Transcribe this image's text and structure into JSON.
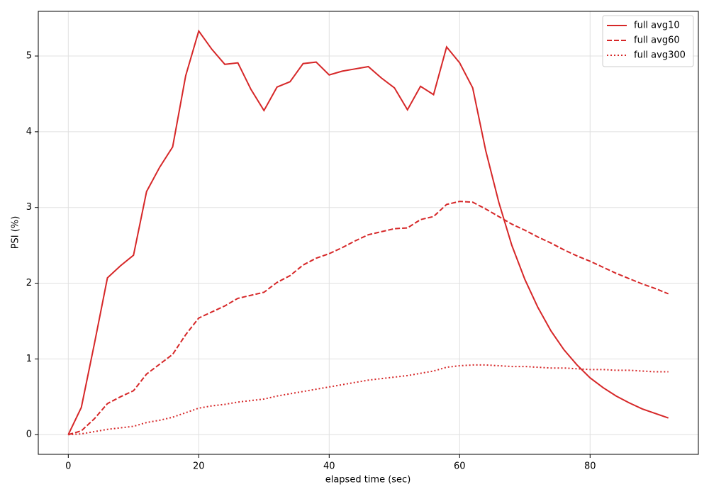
{
  "chart_data": {
    "type": "line",
    "xlabel": "elapsed time (sec)",
    "ylabel": "PSI (%)",
    "x": [
      0,
      2,
      4,
      6,
      8,
      10,
      12,
      14,
      16,
      18,
      20,
      22,
      24,
      26,
      28,
      30,
      32,
      34,
      36,
      38,
      40,
      42,
      44,
      46,
      48,
      50,
      52,
      54,
      56,
      58,
      60,
      62,
      64,
      66,
      68,
      70,
      72,
      74,
      76,
      78,
      80,
      82,
      84,
      86,
      88,
      90,
      92
    ],
    "series": [
      {
        "name": "full avg10",
        "color": "#d62728",
        "dash": "solid",
        "values": [
          0,
          0.36,
          1.2,
          2.07,
          2.23,
          2.37,
          3.21,
          3.53,
          3.8,
          4.74,
          5.33,
          5.09,
          4.89,
          4.91,
          4.56,
          4.28,
          4.59,
          4.66,
          4.9,
          4.92,
          4.75,
          4.8,
          4.83,
          4.86,
          4.71,
          4.58,
          4.29,
          4.6,
          4.49,
          5.12,
          4.91,
          4.58,
          3.75,
          3.07,
          2.5,
          2.05,
          1.68,
          1.37,
          1.12,
          0.92,
          0.75,
          0.62,
          0.51,
          0.42,
          0.34,
          0.28,
          0.22
        ]
      },
      {
        "name": "full avg60",
        "color": "#d62728",
        "dash": "dashed",
        "values": [
          0,
          0.05,
          0.21,
          0.41,
          0.5,
          0.58,
          0.8,
          0.93,
          1.06,
          1.32,
          1.54,
          1.62,
          1.7,
          1.8,
          1.84,
          1.88,
          2.01,
          2.1,
          2.24,
          2.33,
          2.39,
          2.47,
          2.56,
          2.64,
          2.68,
          2.72,
          2.73,
          2.84,
          2.88,
          3.04,
          3.08,
          3.07,
          2.98,
          2.88,
          2.78,
          2.7,
          2.61,
          2.53,
          2.44,
          2.36,
          2.29,
          2.21,
          2.13,
          2.06,
          1.99,
          1.93,
          1.86
        ]
      },
      {
        "name": "full avg300",
        "color": "#d62728",
        "dash": "dotted",
        "values": [
          0,
          0.01,
          0.04,
          0.07,
          0.09,
          0.11,
          0.16,
          0.19,
          0.23,
          0.29,
          0.35,
          0.38,
          0.4,
          0.43,
          0.45,
          0.47,
          0.51,
          0.54,
          0.57,
          0.6,
          0.63,
          0.66,
          0.69,
          0.72,
          0.74,
          0.76,
          0.78,
          0.81,
          0.84,
          0.89,
          0.91,
          0.92,
          0.92,
          0.91,
          0.9,
          0.9,
          0.89,
          0.88,
          0.88,
          0.87,
          0.86,
          0.86,
          0.85,
          0.85,
          0.84,
          0.83,
          0.83
        ]
      }
    ],
    "xlim": [
      -4.6,
      96.6
    ],
    "xticks": [
      0,
      20,
      40,
      60,
      80
    ],
    "ylim": [
      -0.26,
      5.59
    ],
    "yticks": [
      0,
      1,
      2,
      3,
      4,
      5
    ],
    "grid": true,
    "legend": "upper right"
  }
}
